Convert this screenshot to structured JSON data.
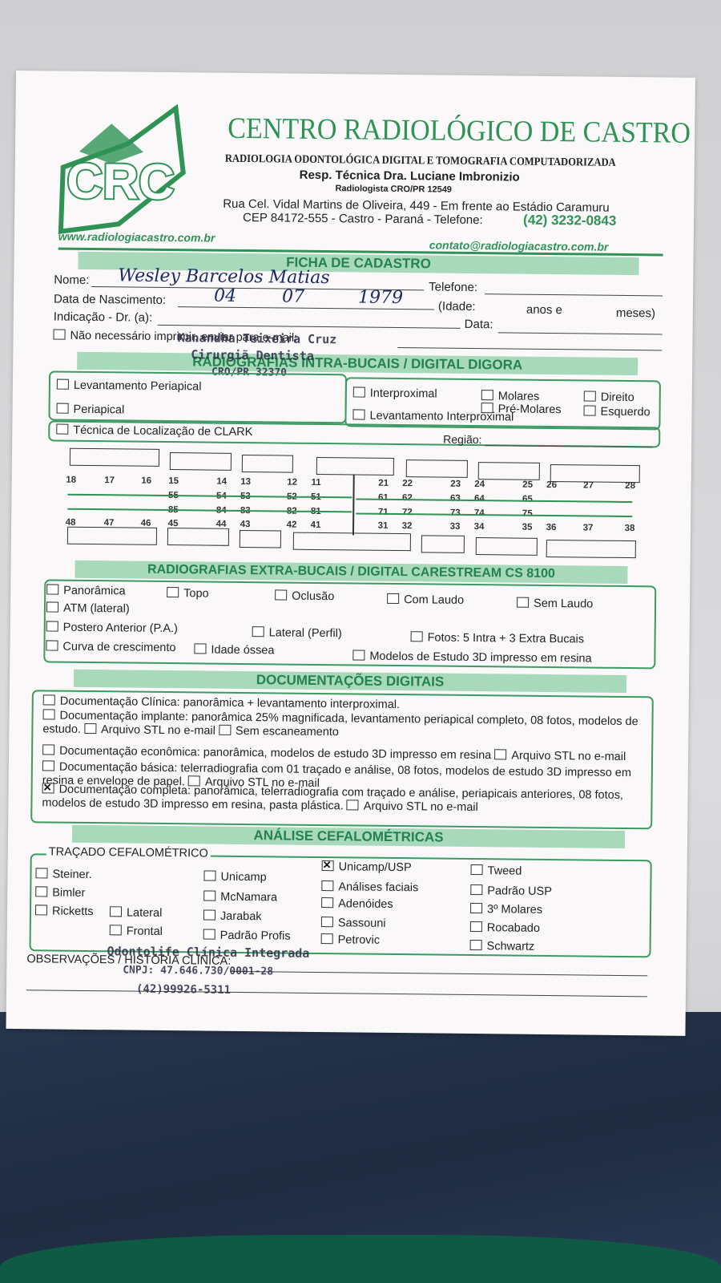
{
  "header": {
    "logo": "CRC",
    "title": "CENTRO RADIOLÓGICO DE CASTRO",
    "subtitle": "RADIOLOGIA ODONTOLÓGICA DIGITAL E TOMOGRAFIA COMPUTADORIZADA",
    "responsible": "Resp. Técnica Dra. Luciane Imbronizio",
    "registration": "Radiologista CRO/PR 12549",
    "address": "Rua Cel. Vidal Martins de Oliveira, 449 - Em frente ao Estádio Caramuru",
    "city": "CEP 84172-555 - Castro - Paraná - Telefone:",
    "phone": "(42) 3232-0843",
    "website": "www.radiologiacastro.com.br",
    "email": "contato@radiologiacastro.com.br"
  },
  "registration_form": {
    "heading": "FICHA DE CADASTRO",
    "name_label": "Nome:",
    "name_value": "Wesley Barcelos Matias",
    "phone_label": "Telefone:",
    "birth_label": "Data de Nascimento:",
    "birth_day": "04",
    "birth_month": "07",
    "birth_year": "1979",
    "age_label": "(Idade:",
    "years_label": "anos e",
    "months_label": "meses)",
    "indication_label": "Indicação - Dr. (a):",
    "date_label": "Data:",
    "email_option": {
      "label": "Não necessário imprimir, enviar para e-mail:",
      "checked": false
    }
  },
  "dentist_stamp": {
    "name": "Kanandha Teixeira Cruz",
    "role": "Cirurgiã Dentista",
    "cro": "CRO/PR 32370"
  },
  "intraoral": {
    "heading": "RADIOGRAFIAS INTRA-BUCAIS / DIGITAL DIGORA",
    "options": [
      {
        "label": "Levantamento Periapical",
        "checked": false
      },
      {
        "label": "Periapical",
        "checked": false
      },
      {
        "label": "Interproximal",
        "checked": false
      },
      {
        "label": "Levantamento Interproximal",
        "checked": false
      },
      {
        "label": "Molares",
        "checked": false
      },
      {
        "label": "Pré-Molares",
        "checked": false
      },
      {
        "label": "Direito",
        "checked": false
      },
      {
        "label": "Esquerdo",
        "checked": false
      },
      {
        "label": "Técnica de Localização de CLARK",
        "checked": false
      }
    ],
    "region_label": "Região:"
  },
  "teeth": {
    "upper_permanent": [
      18,
      17,
      16,
      15,
      14,
      13,
      12,
      11,
      21,
      22,
      23,
      24,
      25,
      26,
      27,
      28
    ],
    "upper_deciduous": [
      55,
      54,
      53,
      52,
      51,
      61,
      62,
      63,
      64,
      65
    ],
    "lower_deciduous": [
      85,
      84,
      83,
      82,
      81,
      71,
      72,
      73,
      74,
      75
    ],
    "lower_permanent": [
      48,
      47,
      46,
      45,
      44,
      43,
      42,
      41,
      31,
      32,
      33,
      34,
      35,
      36,
      37,
      38
    ]
  },
  "extraoral": {
    "heading": "RADIOGRAFIAS EXTRA-BUCAIS / DIGITAL CARESTREAM CS 8100",
    "options": [
      {
        "label": "Panorâmica",
        "checked": false
      },
      {
        "label": "Topo",
        "checked": false
      },
      {
        "label": "Oclusão",
        "checked": false
      },
      {
        "label": "Com Laudo",
        "checked": false
      },
      {
        "label": "Sem Laudo",
        "checked": false
      },
      {
        "label": "ATM (lateral)",
        "checked": false
      },
      {
        "label": "Postero Anterior (P.A.)",
        "checked": false
      },
      {
        "label": "Lateral (Perfil)",
        "checked": false
      },
      {
        "label": "Fotos: 5 Intra + 3 Extra Bucais",
        "checked": false
      },
      {
        "label": "Curva de crescimento",
        "checked": false
      },
      {
        "label": "Idade óssea",
        "checked": false
      },
      {
        "label": "Modelos de Estudo 3D impresso em resina",
        "checked": false
      }
    ]
  },
  "documentation": {
    "heading": "DOCUMENTAÇÕES DIGITAIS",
    "items": [
      {
        "label": "Documentação Clínica: panorâmica + levantamento interproximal.",
        "checked": false,
        "extras": []
      },
      {
        "label": "Documentação implante: panorâmica 25% magnificada, levantamento periapical completo, 08 fotos, modelos de estudo.",
        "checked": false,
        "extras": [
          {
            "label": "Arquivo STL no e-mail",
            "checked": false
          },
          {
            "label": "Sem escaneamento",
            "checked": false
          }
        ]
      },
      {
        "label": "Documentação econômica: panorâmica, modelos de estudo 3D impresso em resina",
        "checked": false,
        "extras": [
          {
            "label": "Arquivo STL no e-mail",
            "checked": false
          }
        ]
      },
      {
        "label": "Documentação básica: telerradiografia com 01 traçado e análise, 08 fotos, modelos de estudo 3D impresso em resina e envelope de papel.",
        "checked": false,
        "extras": [
          {
            "label": "Arquivo STL no e-mail",
            "checked": false
          }
        ]
      },
      {
        "label": "Documentação completa: panorâmica, telerradiografia com traçado e análise, periapicais anteriores, 08 fotos, modelos de estudo 3D impresso em resina, pasta plástica.",
        "checked": true,
        "extras": [
          {
            "label": "Arquivo STL no e-mail",
            "checked": false
          }
        ]
      }
    ]
  },
  "cephalometric": {
    "heading": "ANÁLISE CEFALOMÉTRICAS",
    "subheading": "TRAÇADO CEFALOMÉTRICO",
    "options": [
      {
        "label": "Steiner.",
        "checked": false
      },
      {
        "label": "Bimler",
        "checked": false
      },
      {
        "label": "Ricketts",
        "checked": false
      },
      {
        "label": "Lateral",
        "checked": false
      },
      {
        "label": "Frontal",
        "checked": false
      },
      {
        "label": "Unicamp",
        "checked": false
      },
      {
        "label": "McNamara",
        "checked": false
      },
      {
        "label": "Jarabak",
        "checked": false
      },
      {
        "label": "Padrão Profis",
        "checked": false
      },
      {
        "label": "Unicamp/USP",
        "checked": true
      },
      {
        "label": "Análises faciais",
        "checked": false
      },
      {
        "label": "Adenóides",
        "checked": false
      },
      {
        "label": "Sassouni",
        "checked": false
      },
      {
        "label": "Petrovic",
        "checked": false
      },
      {
        "label": "Tweed",
        "checked": false
      },
      {
        "label": "Padrão USP",
        "checked": false
      },
      {
        "label": "3º Molares",
        "checked": false
      },
      {
        "label": "Rocabado",
        "checked": false
      },
      {
        "label": "Schwartz",
        "checked": false
      }
    ]
  },
  "observations_label": "OBSERVAÇÕES / HISTÓRIA CLÍNICA:",
  "clinic_stamp": {
    "name": "Odontolife Clínica Integrada",
    "cnpj": "CNPJ: 47.646.730/0001-28",
    "phone": "(42)99926-5311"
  }
}
